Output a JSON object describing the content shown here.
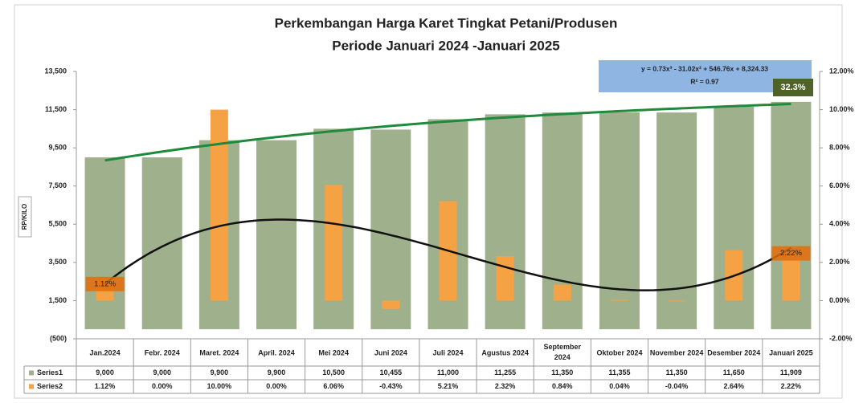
{
  "chart_data": {
    "type": "bar",
    "title": "Perkembangan Harga Karet Tingkat Petani/Produsen",
    "subtitle": "Periode Januari 2024 -Januari 2025",
    "y_label": "RP/KILO",
    "categories": [
      "Jan.2024",
      "Febr. 2024",
      "Maret. 2024",
      "April. 2024",
      "Mei 2024",
      "Juni 2024",
      "Juli 2024",
      "Agustus 2024",
      "September 2024",
      "Oktober 2024",
      "November 2024",
      "Desember 2024",
      "Januari 2025"
    ],
    "series": [
      {
        "name": "Series1",
        "color": "#9fb08c",
        "axis": "y",
        "values": [
          9000,
          9000,
          9900,
          9900,
          10500,
          10455,
          11000,
          11255,
          11350,
          11355,
          11350,
          11650,
          11909
        ],
        "value_labels": [
          "9,000",
          "9,000",
          "9,900",
          "9,900",
          "10,500",
          "10,455",
          "11,000",
          "11,255",
          "11,350",
          "11,355",
          "11,350",
          "11,650",
          "11,909"
        ]
      },
      {
        "name": "Series2",
        "color": "#f5a244",
        "axis": "y2",
        "values": [
          1.12,
          0.0,
          10.0,
          0.0,
          6.06,
          -0.43,
          5.21,
          2.32,
          0.84,
          0.04,
          -0.04,
          2.64,
          2.22
        ],
        "value_labels": [
          "1.12%",
          "0.00%",
          "10.00%",
          "0.00%",
          "6.06%",
          "-0.43%",
          "5.21%",
          "2.32%",
          "0.84%",
          "0.04%",
          "-0.04%",
          "2.64%",
          "2.22%"
        ]
      }
    ],
    "trendline_colors": [
      "#1f8a3b",
      "#111111"
    ],
    "trendline_label": [
      "y = 0.73x³ - 31.02x² + 546.76x + 8,324.33",
      "R² = 0.97"
    ],
    "annotation": "32.3%",
    "ylim": [
      -500,
      13500
    ],
    "yticks": [
      {
        "value": -500,
        "label": "(500)"
      },
      {
        "value": 1500,
        "label": "1,500"
      },
      {
        "value": 3500,
        "label": "3,500"
      },
      {
        "value": 5500,
        "label": "5,500"
      },
      {
        "value": 7500,
        "label": "7,500"
      },
      {
        "value": 9500,
        "label": "9,500"
      },
      {
        "value": 11500,
        "label": "11,500"
      },
      {
        "value": 13500,
        "label": "13,500"
      }
    ],
    "y2lim": [
      -2,
      12
    ],
    "y2ticks": [
      {
        "value": -2,
        "label": "-2.00%"
      },
      {
        "value": 0,
        "label": "0.00%"
      },
      {
        "value": 2,
        "label": "2.00%"
      },
      {
        "value": 4,
        "label": "4.00%"
      },
      {
        "value": 6,
        "label": "6.00%"
      },
      {
        "value": 8,
        "label": "8.00%"
      },
      {
        "value": 10,
        "label": "10.00%"
      },
      {
        "value": 12,
        "label": "12.00%"
      }
    ]
  }
}
